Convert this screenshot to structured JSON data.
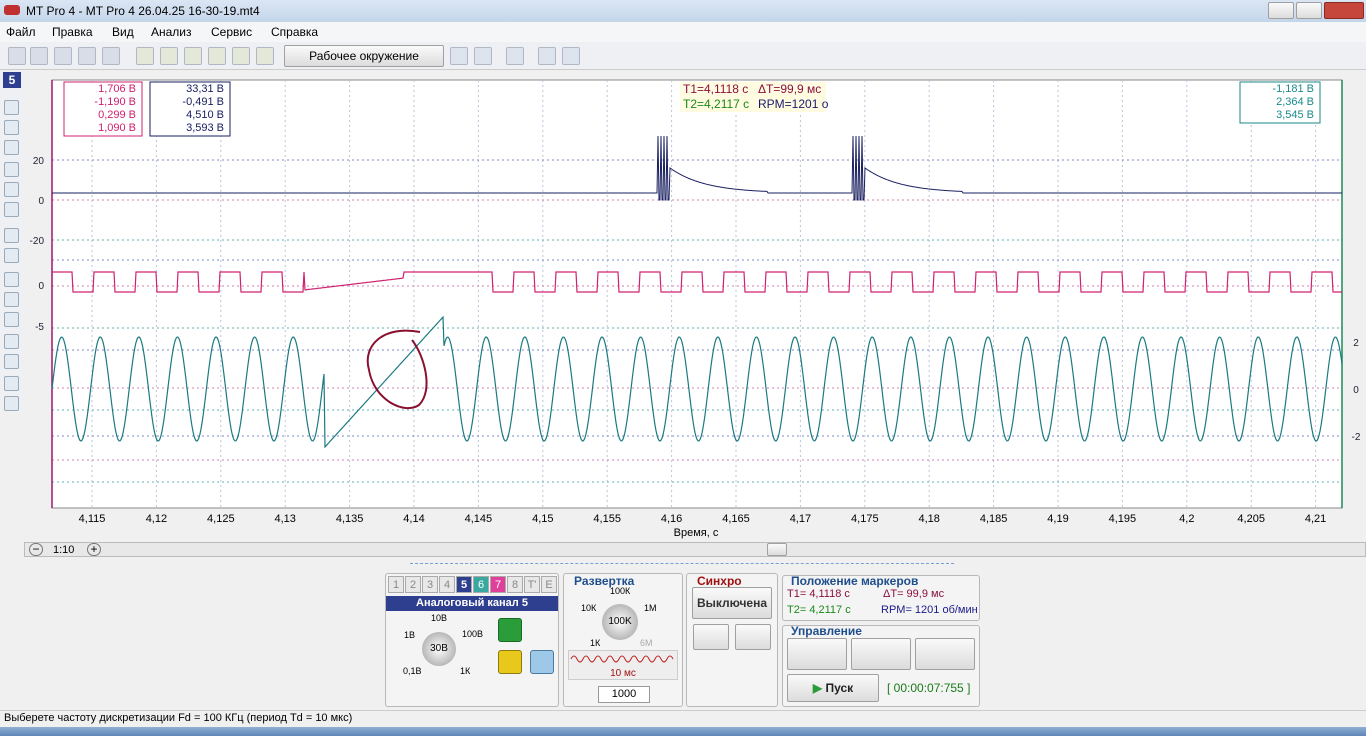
{
  "window": {
    "title": "MT Pro 4 - MT Pro 4 26.04.25 16-30-19.mt4"
  },
  "menu": [
    "Файл",
    "Правка",
    "Вид",
    "Анализ",
    "Сервис",
    "Справка"
  ],
  "toolbar": {
    "workspace": "Рабочее окружение"
  },
  "left_toolbar": {
    "channel": "5"
  },
  "plot": {
    "measure_pink": [
      "1,706 В",
      "-1,190 В",
      "0,299 В",
      "1,090 В"
    ],
    "measure_navy": [
      "33,31 В",
      "-0,491 В",
      "4,510 В",
      "3,593 В"
    ],
    "measure_teal": [
      "-1,181 В",
      "2,364 В",
      "3,545 В"
    ],
    "cursor_line1": [
      "T1=4,1118 с",
      "ΔT=99,9 мс"
    ],
    "cursor_line2": [
      "T2=4,2117 с",
      "RPM=1201 о"
    ],
    "left_labels_navy": [
      "20",
      "0",
      "-20"
    ],
    "left_labels_pink": [
      "0",
      "-5"
    ],
    "right_labels_teal": [
      "2",
      "0",
      "-2"
    ],
    "x_ticks": [
      "4,115",
      "4,12",
      "4,125",
      "4,13",
      "4,135",
      "4,14",
      "4,145",
      "4,15",
      "4,155",
      "4,16",
      "4,165",
      "4,17",
      "4,175",
      "4,18",
      "4,185",
      "4,19",
      "4,195",
      "4,2",
      "4,205",
      "4,21"
    ],
    "x_label": "Время, с"
  },
  "scrollbar": {
    "zoom": "1:10"
  },
  "channel_panel": {
    "tabs": [
      "1",
      "2",
      "3",
      "4",
      "5",
      "6",
      "7",
      "8",
      "T'",
      "E"
    ],
    "title": "Аналоговый канал 5",
    "knob_labels": [
      "10В",
      "1В",
      "100В",
      "0,1В",
      "1К"
    ],
    "knob_value": "30В"
  },
  "sweep_panel": {
    "title": "Развертка",
    "knob_labels": [
      "100К",
      "10К",
      "1М",
      "1К",
      "6М"
    ],
    "knob_value": "100K",
    "period": "10 мс",
    "count": "1000"
  },
  "sync_panel": {
    "title": "Синхро",
    "state": "Выключена"
  },
  "markers_panel": {
    "title": "Положение маркеров",
    "t1": "T1= 4,1118 с",
    "dt": "ΔT= 99,9 мс",
    "t2": "T2= 4,2117 с",
    "rpm": "RPM= 1201 об/мин"
  },
  "control_panel": {
    "title": "Управление",
    "start": "Пуск",
    "timer": "[ 00:00:07:755 ]"
  },
  "status_bar": "Выберете частоту дискретизации Fd = 100 КГц (период Td = 10 мкс)"
}
